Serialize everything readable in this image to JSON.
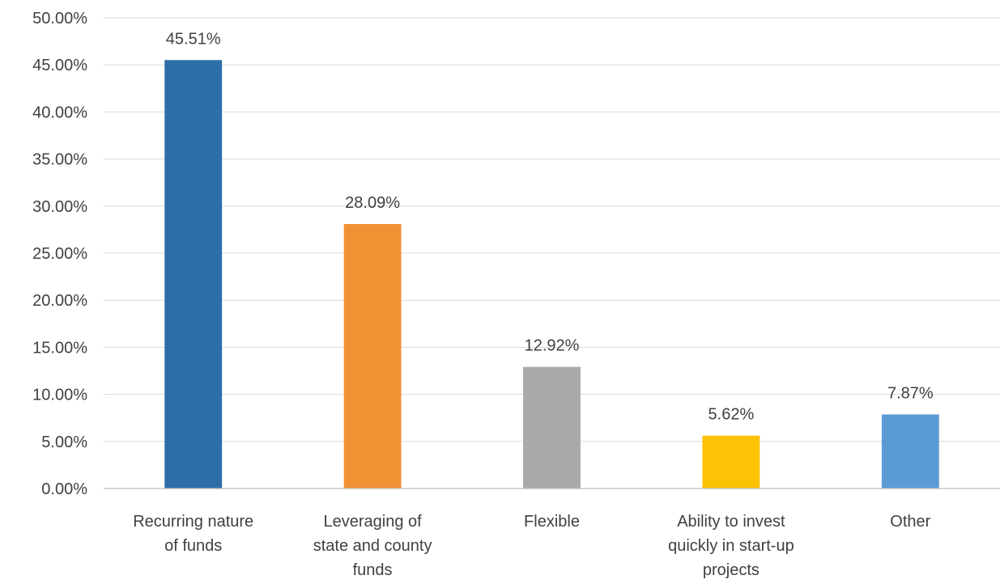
{
  "chart_data": {
    "type": "bar",
    "categories": [
      "Recurring nature of funds",
      "Leveraging of state and county funds",
      "Flexible",
      "Ability to invest quickly in start-up projects",
      "Other"
    ],
    "category_label_lines": [
      [
        "Recurring nature",
        "of funds"
      ],
      [
        "Leveraging of",
        "state and county",
        "funds"
      ],
      [
        "Flexible"
      ],
      [
        "Ability to invest",
        "quickly in start-up",
        "projects"
      ],
      [
        "Other"
      ]
    ],
    "values": [
      45.51,
      28.09,
      12.92,
      5.62,
      7.87
    ],
    "data_labels": [
      "45.51%",
      "28.09%",
      "12.92%",
      "5.62%",
      "7.87%"
    ],
    "colors": [
      "#2e6ea8",
      "#f09133",
      "#a9a9ab",
      "#fcc204",
      "#5b9bd5"
    ],
    "title": "",
    "xlabel": "",
    "ylabel": "",
    "ylim": [
      0,
      50
    ],
    "y_ticks": [
      0,
      5,
      10,
      15,
      20,
      25,
      30,
      35,
      40,
      45,
      50
    ],
    "y_tick_labels": [
      "0.00%",
      "5.00%",
      "10.00%",
      "15.00%",
      "20.00%",
      "25.00%",
      "30.00%",
      "35.00%",
      "40.00%",
      "45.00%",
      "50.00%"
    ],
    "grid": true,
    "legend": "none"
  }
}
